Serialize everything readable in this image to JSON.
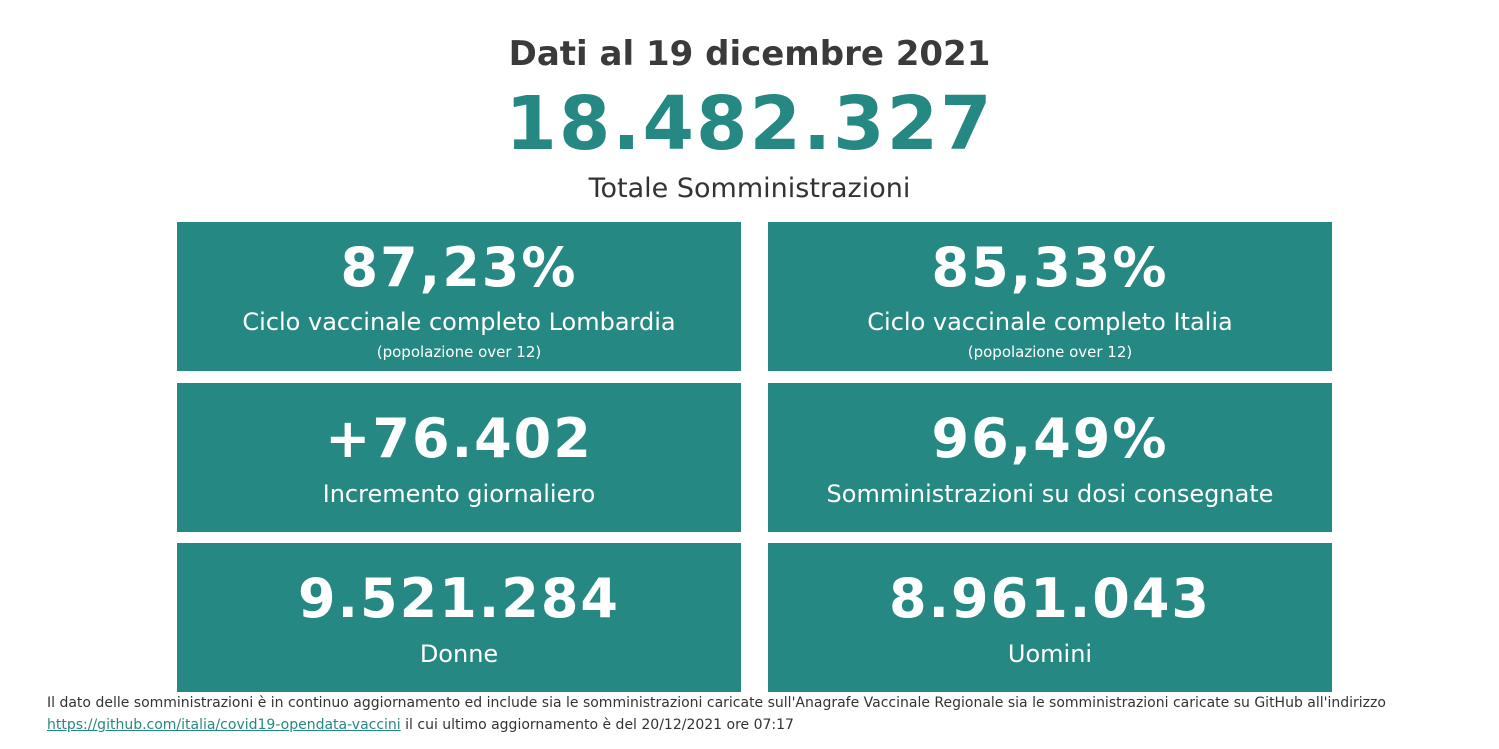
{
  "header": {
    "date_title": "Dati al 19 dicembre 2021",
    "total_value": "18.482.327",
    "total_label": "Totale Somministrazioni"
  },
  "cards": [
    {
      "value": "87,23%",
      "label": "Ciclo vaccinale completo Lombardia",
      "note": "(popolazione over 12)"
    },
    {
      "value": "85,33%",
      "label": "Ciclo vaccinale completo Italia",
      "note": "(popolazione over 12)"
    },
    {
      "value": "+76.402",
      "label": "Incremento giornaliero"
    },
    {
      "value": "96,49%",
      "label": "Somministrazioni su dosi consegnate"
    },
    {
      "value": "9.521.284",
      "label": "Donne"
    },
    {
      "value": "8.961.043",
      "label": "Uomini"
    }
  ],
  "footer": {
    "text_before_link": "Il dato delle somministrazioni è in continuo aggiornamento ed include sia le somministrazioni caricate sull'Anagrafe Vaccinale Regionale sia le somministrazioni caricate su GitHub all'indirizzo",
    "link_text": "https://github.com/italia/covid19-opendata-vaccini",
    "text_after_link": "il cui ultimo aggiornamento è del 20/12/2021 ore 07:17"
  },
  "colors": {
    "accent": "#268882",
    "text": "#333333",
    "card_text": "#ffffff"
  }
}
